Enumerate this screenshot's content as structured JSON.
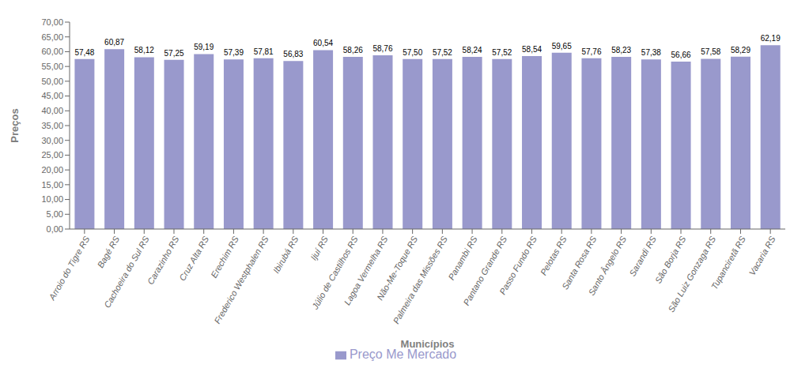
{
  "chart_data": {
    "type": "bar",
    "xlabel": "Municípios",
    "ylabel": "Preços",
    "legend_label": "Preço Me Mercado",
    "categories": [
      "Arroio do Tigre RS",
      "Bagé RS",
      "Cachoeira do Sul RS",
      "Carazinho RS",
      "Cruz Alta RS",
      "Erechim RS",
      "Frederico Westphalen RS",
      "Ibirubá RS",
      "Ijuí RS",
      "Júlio de Castilhos RS",
      "Lagoa Vermelha RS",
      "Não-Me-Toque RS",
      "Palmeira das Missões RS",
      "Panambi RS",
      "Pantano Grande RS",
      "Passo Fundo RS",
      "Pelotas RS",
      "Santa Rosa RS",
      "Santo Ângelo RS",
      "Sarandi RS",
      "São Borja RS",
      "São Luiz Gonzaga RS",
      "Tupanciretã RS",
      "Vacaria RS"
    ],
    "values": [
      57.48,
      60.87,
      58.12,
      57.25,
      59.19,
      57.39,
      57.81,
      56.83,
      60.54,
      58.26,
      58.76,
      57.5,
      57.52,
      58.24,
      57.52,
      58.54,
      59.65,
      57.76,
      58.23,
      57.38,
      56.66,
      57.58,
      58.29,
      62.19
    ],
    "value_labels": [
      "57,48",
      "60,87",
      "58,12",
      "57,25",
      "59,19",
      "57,39",
      "57,81",
      "56,83",
      "60,54",
      "58,26",
      "58,76",
      "57,50",
      "57,52",
      "58,24",
      "57,52",
      "58,54",
      "59,65",
      "57,76",
      "58,23",
      "57,38",
      "56,66",
      "57,58",
      "58,29",
      "62,19"
    ],
    "data_labels": true,
    "color": "#9999cc",
    "ylim": [
      0,
      70
    ],
    "yticks": [
      {
        "value": 0,
        "label": "0,00"
      },
      {
        "value": 5,
        "label": "5,00"
      },
      {
        "value": 10,
        "label": "10,00"
      },
      {
        "value": 15,
        "label": "15,00"
      },
      {
        "value": 20,
        "label": "20,00"
      },
      {
        "value": 25,
        "label": "25,00"
      },
      {
        "value": 30,
        "label": "30,00"
      },
      {
        "value": 35,
        "label": "35,00"
      },
      {
        "value": 40,
        "label": "40,00"
      },
      {
        "value": 45,
        "label": "45,00"
      },
      {
        "value": 50,
        "label": "50,00"
      },
      {
        "value": 55,
        "label": "55,00"
      },
      {
        "value": 60,
        "label": "60,00"
      },
      {
        "value": 65,
        "label": "65,00"
      },
      {
        "value": 70,
        "label": "70,00"
      }
    ],
    "grid": false,
    "legend": "bottom"
  }
}
